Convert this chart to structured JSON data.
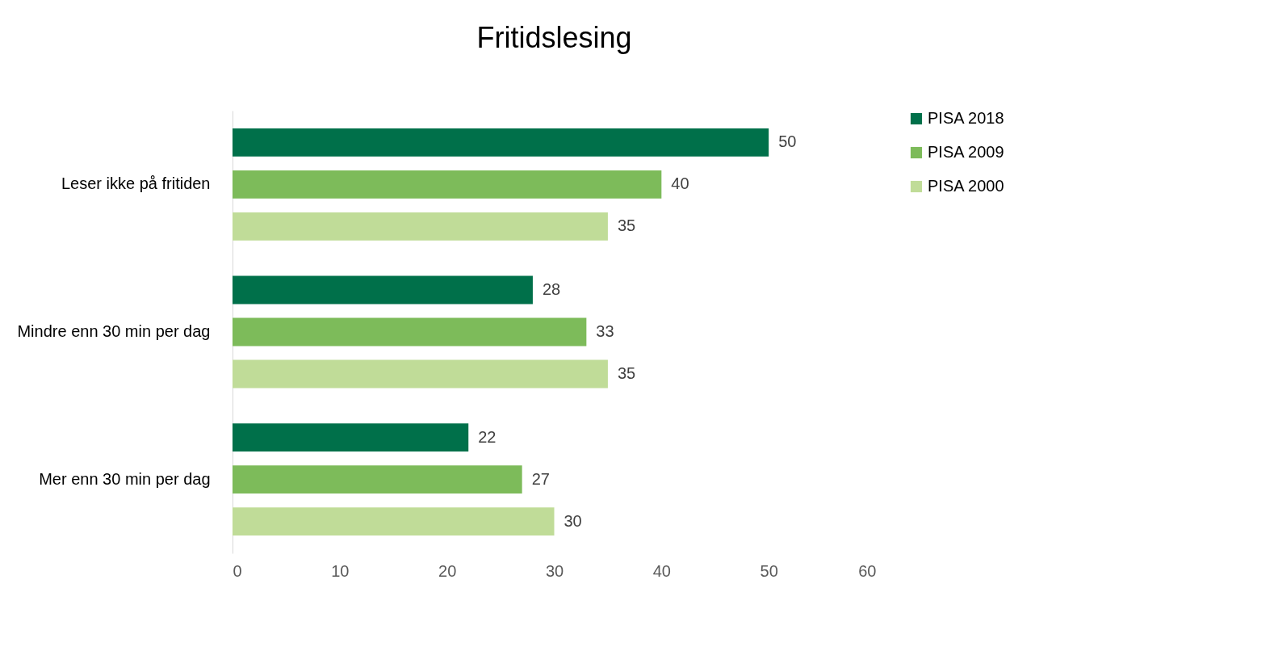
{
  "chart_data": {
    "type": "bar",
    "orientation": "horizontal",
    "title": "Fritidslesing",
    "categories": [
      "Leser ikke på fritiden",
      "Mindre enn 30 min per dag",
      "Mer enn 30  min per dag"
    ],
    "series": [
      {
        "name": "PISA 2018",
        "color": "#00704a",
        "values": [
          50,
          28,
          22
        ]
      },
      {
        "name": "PISA 2009",
        "color": "#7dbb5a",
        "values": [
          40,
          33,
          27
        ]
      },
      {
        "name": "PISA 2000",
        "color": "#c0dc98",
        "values": [
          35,
          35,
          30
        ]
      }
    ],
    "xlim": [
      0,
      60
    ],
    "xticks": [
      0,
      10,
      20,
      30,
      40,
      50,
      60
    ],
    "data_labels": true,
    "legend": "right",
    "grid": false
  }
}
